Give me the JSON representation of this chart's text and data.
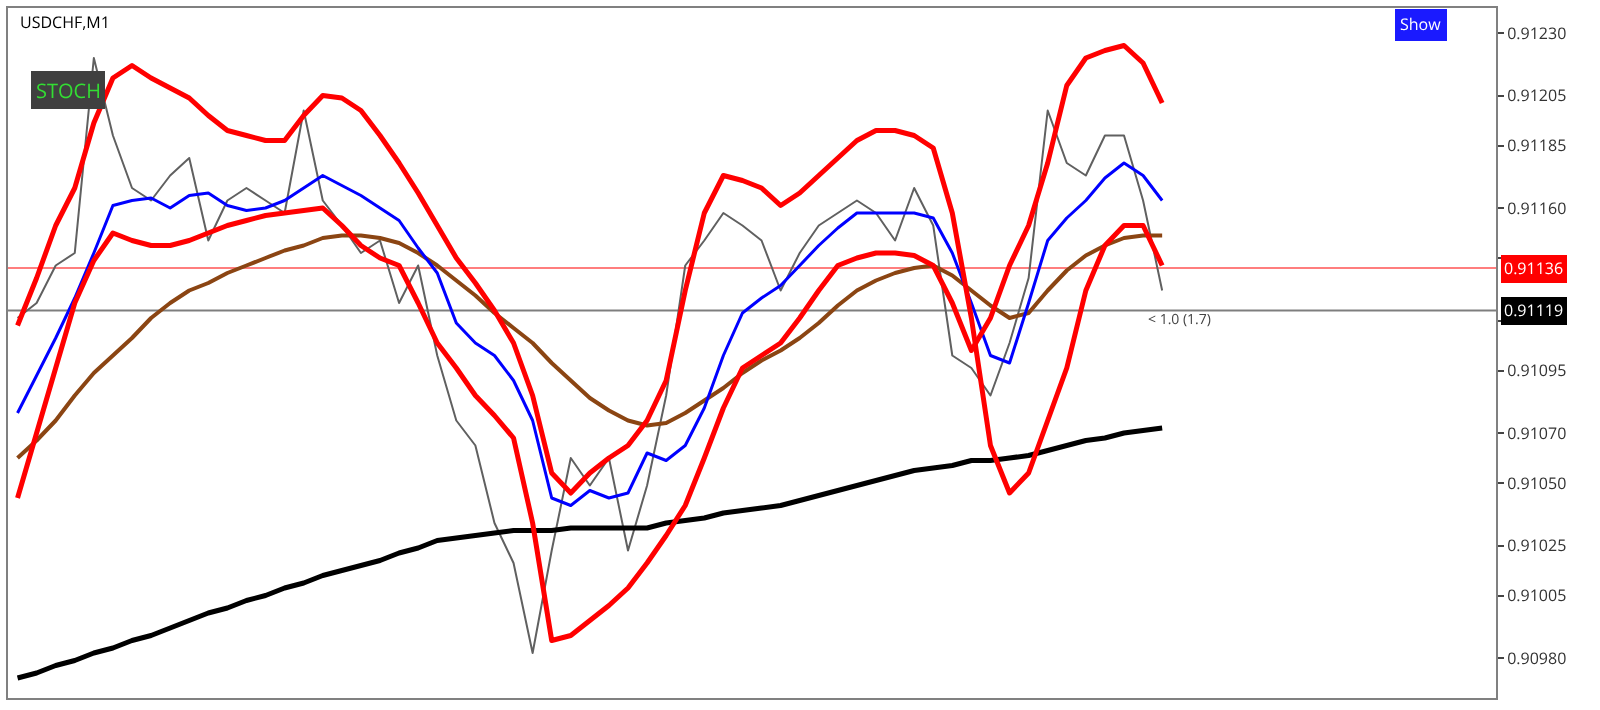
{
  "chart_data": {
    "type": "line",
    "title": "USDCHF,M1",
    "categories": [
      null,
      null,
      null,
      null,
      null,
      null,
      null,
      null,
      null,
      null,
      null,
      null,
      null,
      null,
      null,
      null,
      null,
      null,
      null,
      null,
      null,
      null,
      null,
      null,
      null,
      null,
      null,
      null,
      null,
      null,
      null,
      null,
      null,
      null,
      null,
      null,
      null,
      null,
      null,
      null,
      null,
      null,
      null,
      null,
      null,
      null,
      null,
      null,
      null,
      null,
      null,
      null,
      null,
      null,
      null,
      null,
      null,
      null,
      null,
      null,
      null,
      null,
      null,
      null,
      null,
      null,
      null,
      null,
      null,
      null,
      null,
      null,
      null,
      null,
      null,
      null,
      null,
      null
    ],
    "series": [
      {
        "color": "#606060",
        "values": [
          0.91116,
          0.91122,
          0.91137,
          0.91142,
          0.9122,
          0.91189,
          0.91168,
          0.91163,
          0.91173,
          0.9118,
          0.91147,
          0.91163,
          0.91168,
          0.91163,
          0.91158,
          0.91199,
          0.91163,
          0.91153,
          0.91142,
          0.91147,
          0.91122,
          0.91137,
          0.91101,
          0.91075,
          0.91065,
          0.91034,
          0.91018,
          0.90982,
          0.91023,
          0.9106,
          0.91049,
          0.9106,
          0.91023,
          0.91049,
          0.91085,
          0.91137,
          0.91147,
          0.91158,
          0.91153,
          0.91147,
          0.91127,
          0.91142,
          0.91153,
          0.91158,
          0.91163,
          0.91158,
          0.91147,
          0.91168,
          0.91153,
          0.91101,
          0.91096,
          0.91085,
          0.91106,
          0.91132,
          0.91199,
          0.91178,
          0.91173,
          0.91189,
          0.91189,
          0.91163,
          0.91127,
          null,
          null,
          null,
          null,
          null,
          null,
          null,
          null,
          null,
          null,
          null,
          null,
          null,
          null,
          null,
          null,
          null
        ]
      },
      {
        "color": "#000000",
        "values": [
          0.90972,
          0.90974,
          0.90977,
          0.90979,
          0.90982,
          0.90984,
          0.90987,
          0.90989,
          0.90992,
          0.90995,
          0.90998,
          0.91,
          0.91003,
          0.91005,
          0.91008,
          0.9101,
          0.91013,
          0.91015,
          0.91017,
          0.91019,
          0.91022,
          0.91024,
          0.91027,
          0.91028,
          0.91029,
          0.9103,
          0.91031,
          0.91031,
          0.91031,
          0.91032,
          0.91032,
          0.91032,
          0.91032,
          0.91032,
          0.91034,
          0.91035,
          0.91036,
          0.91038,
          0.91039,
          0.9104,
          0.91041,
          0.91043,
          0.91045,
          0.91047,
          0.91049,
          0.91051,
          0.91053,
          0.91055,
          0.91056,
          0.91057,
          0.91059,
          0.91059,
          0.9106,
          0.91061,
          0.91063,
          0.91065,
          0.91067,
          0.91068,
          0.9107,
          0.91071,
          0.91072,
          null,
          null,
          null,
          null,
          null,
          null,
          null,
          null,
          null,
          null,
          null,
          null,
          null,
          null,
          null,
          null,
          null
        ]
      },
      {
        "color": "#8b4513",
        "values": [
          0.9106,
          0.91067,
          0.91075,
          0.91085,
          0.91094,
          0.91101,
          0.91108,
          0.91116,
          0.91122,
          0.91127,
          0.9113,
          0.91134,
          0.91137,
          0.9114,
          0.91143,
          0.91145,
          0.91148,
          0.91149,
          0.91149,
          0.91148,
          0.91146,
          0.91142,
          0.91137,
          0.91131,
          0.91125,
          0.91118,
          0.91112,
          0.91106,
          0.91098,
          0.91091,
          0.91084,
          0.91079,
          0.91075,
          0.91073,
          0.91074,
          0.91078,
          0.91083,
          0.91088,
          0.91094,
          0.91099,
          0.91103,
          0.91108,
          0.91114,
          0.91121,
          0.91127,
          0.91131,
          0.91134,
          0.91136,
          0.91137,
          0.91133,
          0.91127,
          0.91121,
          0.91116,
          0.91118,
          0.91127,
          0.91135,
          0.91141,
          0.91145,
          0.91148,
          0.91149,
          0.91149,
          null,
          null,
          null,
          null,
          null,
          null,
          null,
          null,
          null,
          null,
          null,
          null,
          null,
          null,
          null,
          null,
          null
        ]
      },
      {
        "color": "#0000ff",
        "values": [
          0.91078,
          0.91093,
          0.91108,
          0.91124,
          0.91142,
          0.91161,
          0.91163,
          0.91164,
          0.9116,
          0.91165,
          0.91166,
          0.91161,
          0.91159,
          0.9116,
          0.91163,
          0.91168,
          0.91173,
          0.91169,
          0.91165,
          0.9116,
          0.91155,
          0.91144,
          0.91134,
          0.91114,
          0.91106,
          0.91101,
          0.91091,
          0.91075,
          0.91044,
          0.91041,
          0.91047,
          0.91044,
          0.91046,
          0.91062,
          0.91059,
          0.91065,
          0.9108,
          0.91101,
          0.91118,
          0.91124,
          0.91129,
          0.91137,
          0.91145,
          0.91152,
          0.91158,
          0.91158,
          0.91158,
          0.91158,
          0.91156,
          0.91142,
          0.91122,
          0.91101,
          0.91098,
          0.91122,
          0.91147,
          0.91156,
          0.91163,
          0.91172,
          0.91178,
          0.91173,
          0.91163,
          null,
          null,
          null,
          null,
          null,
          null,
          null,
          null,
          null,
          null,
          null,
          null,
          null,
          null,
          null,
          null,
          null
        ]
      },
      {
        "color": "#ff0000",
        "values": [
          0.91113,
          0.91132,
          0.91153,
          0.91168,
          0.91194,
          0.91212,
          0.91217,
          0.91212,
          0.91208,
          0.91204,
          0.91197,
          0.91191,
          0.91189,
          0.91187,
          0.91187,
          0.91197,
          0.91205,
          0.91204,
          0.91199,
          0.91189,
          0.91178,
          0.91166,
          0.91153,
          0.9114,
          0.9113,
          0.91119,
          0.91106,
          0.91085,
          0.91054,
          0.91046,
          0.91054,
          0.9106,
          0.91065,
          0.91075,
          0.91091,
          0.91127,
          0.91158,
          0.91173,
          0.91171,
          0.91168,
          0.91161,
          0.91166,
          0.91173,
          0.9118,
          0.91187,
          0.91191,
          0.91191,
          0.91189,
          0.91184,
          0.91158,
          0.91116,
          0.91065,
          0.91046,
          0.91054,
          0.91075,
          0.91096,
          0.91127,
          0.91145,
          0.91153,
          0.91153,
          0.91137,
          null,
          null,
          null,
          null,
          null,
          null,
          null,
          null,
          null,
          null,
          null,
          null,
          null,
          null,
          null,
          null,
          null
        ]
      },
      {
        "color": "#ff0000",
        "values": [
          0.91044,
          0.9107,
          0.91096,
          0.91122,
          0.91139,
          0.9115,
          0.91147,
          0.91145,
          0.91145,
          0.91147,
          0.9115,
          0.91153,
          0.91155,
          0.91157,
          0.91158,
          0.91159,
          0.9116,
          0.91153,
          0.91145,
          0.9114,
          0.91137,
          0.91122,
          0.91106,
          0.91096,
          0.91085,
          0.91077,
          0.91068,
          0.91034,
          0.90987,
          0.90989,
          0.90995,
          0.91001,
          0.91008,
          0.91018,
          0.91029,
          0.91041,
          0.9106,
          0.9108,
          0.91096,
          0.91101,
          0.91106,
          0.91116,
          0.91127,
          0.91137,
          0.9114,
          0.91142,
          0.91142,
          0.91141,
          0.91137,
          0.91122,
          0.91103,
          0.91116,
          0.91137,
          0.91153,
          0.91178,
          0.91209,
          0.9122,
          0.91223,
          0.91225,
          0.91218,
          0.91202,
          null,
          null,
          null,
          null,
          null,
          null,
          null,
          null,
          null,
          null,
          null,
          null,
          null,
          null,
          null,
          null,
          null
        ]
      }
    ],
    "ylim": [
      0.90964,
      0.9124
    ],
    "yticks": [
      {
        "value": 0.9123,
        "label": "0.91230"
      },
      0.91205,
      0.91185,
      {
        "value": 0.9116,
        "label": "0.91160"
      },
      {
        "value": 0.9114,
        "label": null
      },
      {
        "value": 0.91115,
        "label": null
      },
      0.91095,
      {
        "value": 0.9107,
        "label": "0.91070"
      },
      {
        "value": 0.9105,
        "label": "0.91050"
      },
      0.91025,
      0.91005,
      {
        "value": 0.9098,
        "label": "0.90980"
      }
    ],
    "ref_lines": [
      {
        "axis": "y",
        "value": 0.91136,
        "label": "0.91136",
        "color": "#ff0000"
      },
      {
        "axis": "y",
        "value": 0.91119,
        "label": "0.91119",
        "color": "#000000"
      }
    ],
    "annotations": [
      "STOCH",
      "Show",
      "< 1.0 (1.7)"
    ],
    "grid": false,
    "marker": "none",
    "line_style": "solid"
  }
}
